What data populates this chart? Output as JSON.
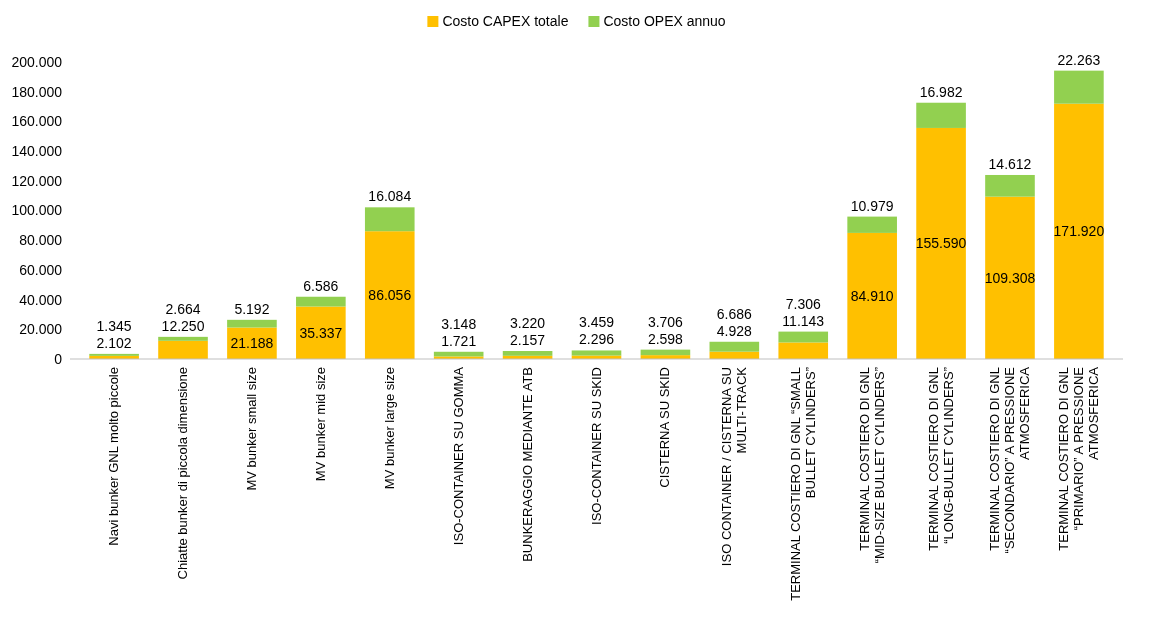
{
  "chart_data": {
    "type": "bar",
    "stacked": true,
    "legend": "top",
    "grid": false,
    "categories": [
      "Navi bunker GNL molto piccole",
      "Chiatte bunker di piccola dimensione",
      "MV bunker small size",
      "MV bunker mid size",
      "MV bunker large size",
      "ISO-CONTAINER SU GOMMA",
      "BUNKERAGGIO MEDIANTE ATB",
      "ISO-CONTAINER SU SKID",
      "CISTERNA SU SKID",
      "ISO CONTAINER / CISTERNA SU MULTI-TRACK",
      "TERMINAL COSTIERO DI GNL “SMALL BULLET CYLINDERS”",
      "TERMINAL COSTIERO DI GNL “MID-SIZE BULLET CYLINDERS”",
      "TERMINAL COSTIERO DI GNL “LONG-BULLET CYLINDERS”",
      "TERMINAL COSTIERO DI GNL “SECONDARIO” A PRESSIONE ATMOSFERICA",
      "TERMINAL COSTIERO DI GNL “PRIMARIO” A PRESSIONE ATMOSFERICA"
    ],
    "series": [
      {
        "name": "Costo CAPEX totale",
        "color": "#ffc000",
        "values": [
          2102,
          12250,
          21188,
          35337,
          86056,
          1721,
          2157,
          2296,
          2598,
          4928,
          11143,
          84910,
          155590,
          109308,
          171920
        ],
        "value_labels": [
          "2.102",
          "12.250",
          "21.188",
          "35.337",
          "86.056",
          "1.721",
          "2.157",
          "2.296",
          "2.598",
          "4.928",
          "11.143",
          "84.910",
          "155.590",
          "109.308",
          "171.920"
        ]
      },
      {
        "name": "Costo OPEX annuo",
        "color": "#92d050",
        "values": [
          1345,
          2664,
          5192,
          6586,
          16084,
          3148,
          3220,
          3459,
          3706,
          6686,
          7306,
          10979,
          16982,
          14612,
          22263
        ],
        "value_labels": [
          "1.345",
          "2.664",
          "5.192",
          "6.586",
          "16.084",
          "3.148",
          "3.220",
          "3.459",
          "3.706",
          "6.686",
          "7.306",
          "10.979",
          "16.982",
          "14.612",
          "22.263"
        ]
      }
    ],
    "ylim": [
      0,
      200000
    ],
    "yticks": [
      {
        "value": 0,
        "label": "0"
      },
      {
        "value": 20000,
        "label": "20.000"
      },
      {
        "value": 40000,
        "label": "40.000"
      },
      {
        "value": 60000,
        "label": "60.000"
      },
      {
        "value": 80000,
        "label": "80.000"
      },
      {
        "value": 100000,
        "label": "100.000"
      },
      {
        "value": 120000,
        "label": "120.000"
      },
      {
        "value": 140000,
        "label": "140.000"
      },
      {
        "value": 160000,
        "label": "160.000"
      },
      {
        "value": 180000,
        "label": "180.000"
      },
      {
        "value": 200000,
        "label": "200.000"
      }
    ]
  }
}
